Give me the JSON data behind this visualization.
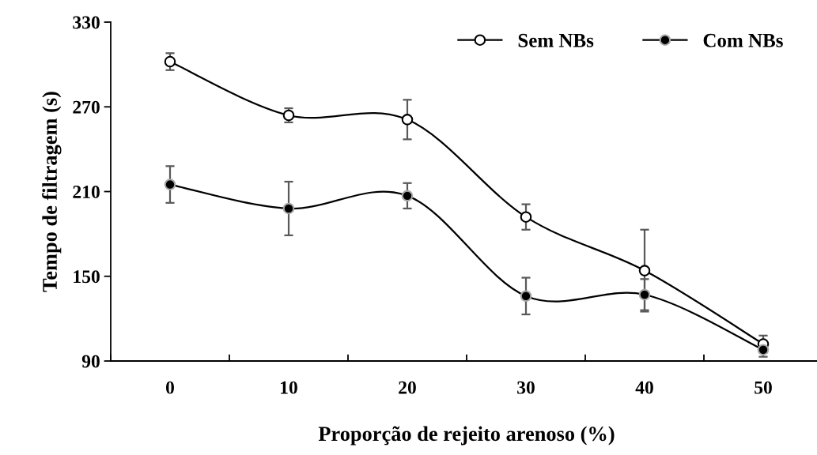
{
  "chart_data": {
    "type": "line",
    "xlabel": "Proporção de rejeito arenoso (%)",
    "ylabel": "Tempo de filtragem (s)",
    "categories": [
      "0",
      "10",
      "20",
      "30",
      "40",
      "50"
    ],
    "series": [
      {
        "name": "Sem NBs",
        "color": "#000000",
        "values": [
          302,
          264,
          261,
          192,
          154,
          102
        ],
        "errors": [
          6,
          5,
          14,
          9,
          29,
          6
        ],
        "marker": "circle"
      },
      {
        "name": "Com NBs",
        "color": "#000000",
        "values": [
          215,
          198,
          207,
          136,
          137,
          98
        ],
        "errors": [
          13,
          19,
          9,
          13,
          11,
          5
        ],
        "marker": "circle"
      }
    ],
    "ylim": [
      90,
      330
    ],
    "yticks": [
      90,
      150,
      210,
      270,
      330
    ],
    "grid": false,
    "legend": "top right",
    "line_style": "solid"
  }
}
